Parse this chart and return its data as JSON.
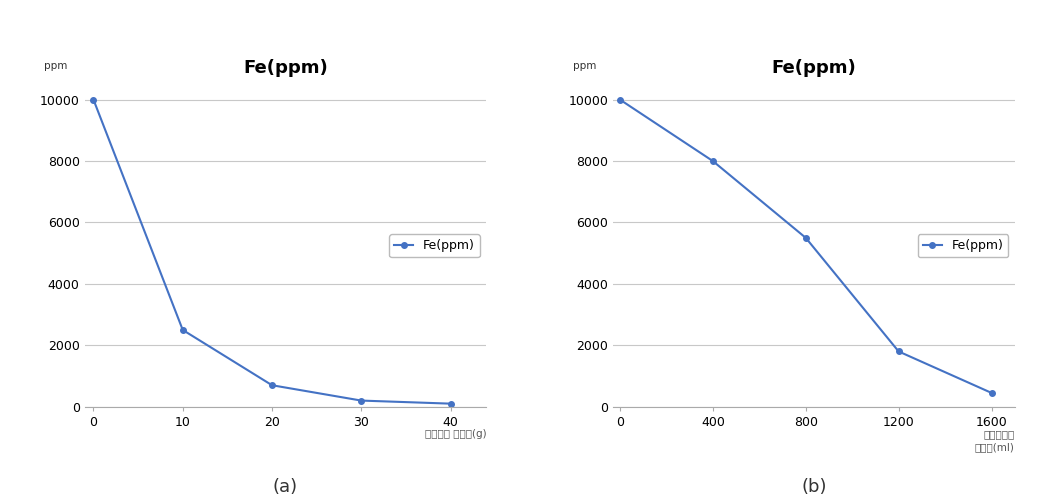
{
  "chart_a": {
    "title": "Fe(ppm)",
    "x": [
      0,
      10,
      20,
      30,
      40
    ],
    "y": [
      10000,
      2500,
      700,
      200,
      100
    ],
    "xlabel_line1": "탄산니켈 투입량(g)",
    "xlabel_line2": null,
    "ylabel": "ppm",
    "xlim": [
      -1,
      44
    ],
    "ylim": [
      0,
      10500
    ],
    "yticks": [
      0,
      2000,
      4000,
      6000,
      8000,
      10000
    ],
    "xticks": [
      0,
      10,
      20,
      30,
      40
    ],
    "legend_label": "Fe(ppm)",
    "subfig_label": "(a)"
  },
  "chart_b": {
    "title": "Fe(ppm)",
    "x": [
      0,
      400,
      800,
      1200,
      1600
    ],
    "y": [
      10000,
      8000,
      5500,
      1800,
      450
    ],
    "xlabel_line1": "과산화수소",
    "xlabel_line2": "투입량(ml)",
    "ylabel": "ppm",
    "xlim": [
      -30,
      1700
    ],
    "ylim": [
      0,
      10500
    ],
    "yticks": [
      0,
      2000,
      4000,
      6000,
      8000,
      10000
    ],
    "xticks": [
      0,
      400,
      800,
      1200,
      1600
    ],
    "legend_label": "Fe(ppm)",
    "subfig_label": "(b)"
  },
  "line_color": "#4472C4",
  "marker": "o",
  "marker_size": 4,
  "line_width": 1.5,
  "title_fontsize": 13,
  "ylabel_fontsize": 7.5,
  "xlabel_fontsize": 7.5,
  "tick_fontsize": 9,
  "legend_fontsize": 9,
  "subfig_label_fontsize": 13,
  "background_color": "#ffffff",
  "grid_color": "#c8c8c8"
}
